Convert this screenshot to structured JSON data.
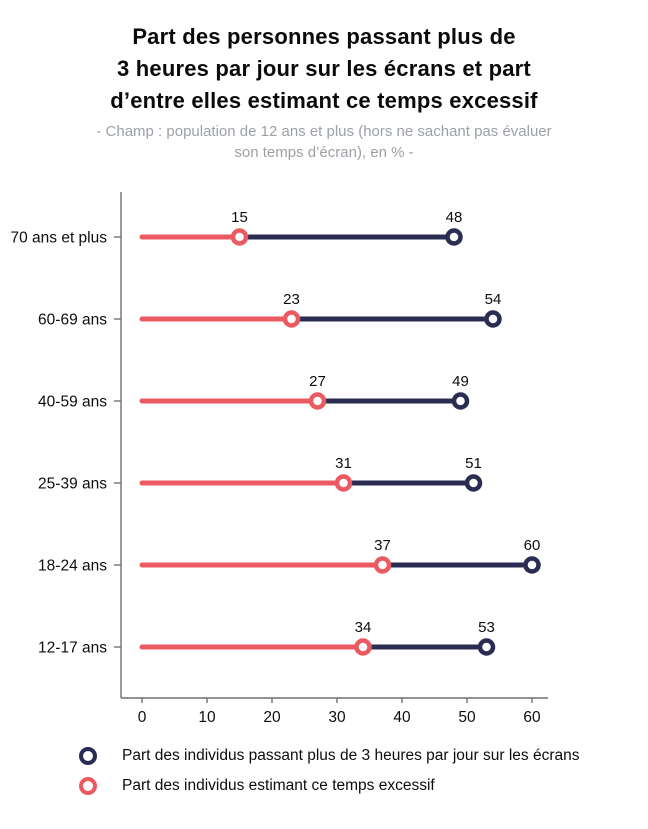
{
  "title": {
    "lines": [
      "Part des personnes passant plus de",
      "3 heures par jour sur les écrans et part",
      "d’entre elles estimant ce temps excessif"
    ]
  },
  "subtitle": {
    "lines": [
      "- Champ : population de 12 ans et plus (hors ne sachant pas évaluer",
      "son temps d’écran), en % -"
    ]
  },
  "chart_data": {
    "type": "scatter",
    "variant": "dumbbell-lollipop",
    "orientation": "horizontal",
    "categories": [
      "70 ans et plus",
      "60-69 ans",
      "40-59 ans",
      "25-39 ans",
      "18-24 ans",
      "12-17 ans"
    ],
    "series": [
      {
        "name": "Part des individus passant plus de 3 heures par jour sur les écrans",
        "color": "#2a2c52",
        "values": [
          48,
          54,
          49,
          51,
          60,
          53
        ]
      },
      {
        "name": "Part des individus estimant ce temps excessif",
        "color": "#ea5a60",
        "values": [
          15,
          23,
          27,
          31,
          37,
          34
        ]
      }
    ],
    "x_ticks": [
      0,
      10,
      20,
      30,
      40,
      50,
      60
    ],
    "xlim": [
      0,
      60
    ],
    "unit": "%",
    "value_labels_shown": true,
    "grid": false,
    "legend_position": "bottom"
  },
  "colors": {
    "axis": "#6f7070",
    "text": "#0d0d0d",
    "subtitle": "#9ca1a6",
    "background": "#ffffff"
  }
}
